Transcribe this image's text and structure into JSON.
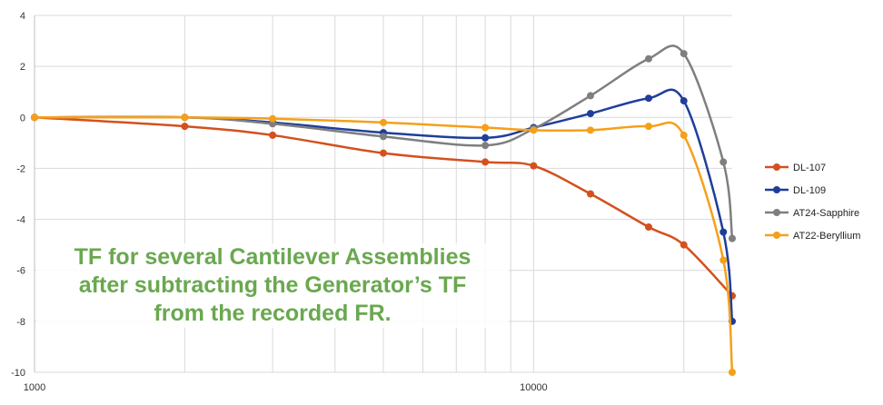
{
  "chart_data": {
    "type": "line",
    "x_scale": "log",
    "xlim": [
      1000,
      25000
    ],
    "ylim": [
      -10,
      4
    ],
    "x_tick_labels": [
      "1000",
      "10000"
    ],
    "y_ticks": [
      4,
      2,
      0,
      -2,
      -4,
      -6,
      -8,
      -10
    ],
    "grid": true,
    "legend_position": "right",
    "annotation": "TF for several Cantilever Assemblies\nafter subtracting the Generator’s TF\nfrom the recorded FR.",
    "series": [
      {
        "name": "DL-107",
        "color": "#d4501e",
        "x": [
          1000,
          2000,
          3000,
          5000,
          8000,
          10000,
          13000,
          17000,
          20000,
          25000
        ],
        "y": [
          0,
          -0.35,
          -0.7,
          -1.4,
          -1.75,
          -1.9,
          -3.0,
          -4.3,
          -5.0,
          -7.0
        ]
      },
      {
        "name": "DL-109",
        "color": "#1f3e9b",
        "x": [
          1000,
          2000,
          3000,
          5000,
          8000,
          10000,
          13000,
          17000,
          20000,
          24000,
          25000
        ],
        "y": [
          0,
          0,
          -0.2,
          -0.6,
          -0.8,
          -0.4,
          0.15,
          0.75,
          0.65,
          -4.5,
          -8.0
        ]
      },
      {
        "name": "AT24-Sapphire",
        "color": "#7f7f7f",
        "x": [
          1000,
          2000,
          3000,
          5000,
          8000,
          10000,
          13000,
          17000,
          20000,
          24000,
          25000
        ],
        "y": [
          0,
          0,
          -0.25,
          -0.75,
          -1.1,
          -0.45,
          0.85,
          2.3,
          2.5,
          -1.75,
          -4.75
        ]
      },
      {
        "name": "AT22-Beryllium",
        "color": "#f5a01a",
        "x": [
          1000,
          2000,
          3000,
          5000,
          8000,
          10000,
          13000,
          17000,
          20000,
          24000,
          25000
        ],
        "y": [
          0,
          0,
          -0.05,
          -0.2,
          -0.4,
          -0.5,
          -0.5,
          -0.35,
          -0.7,
          -5.6,
          -10.0
        ]
      }
    ]
  }
}
